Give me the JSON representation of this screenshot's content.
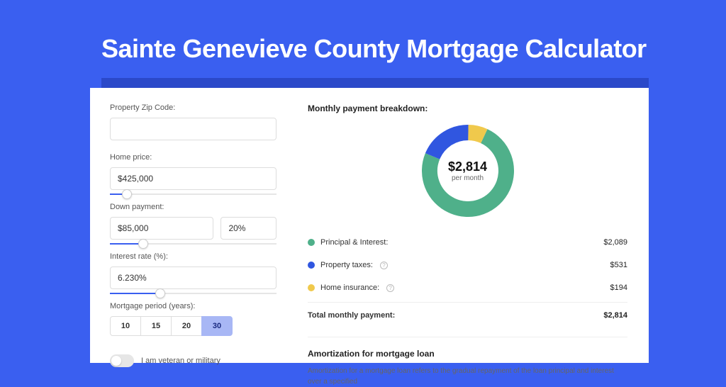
{
  "hero": {
    "title": "Sainte Genevieve County Mortgage Calculator"
  },
  "form": {
    "zip_label": "Property Zip Code:",
    "zip_value": "",
    "home_price_label": "Home price:",
    "home_price_value": "$425,000",
    "home_price_slider_pct": 10,
    "down_payment_label": "Down payment:",
    "down_payment_value": "$85,000",
    "down_payment_pct": "20%",
    "down_payment_slider_pct": 20,
    "rate_label": "Interest rate (%):",
    "rate_value": "6.230%",
    "rate_slider_pct": 30,
    "period_label": "Mortgage period (years):",
    "periods": [
      "10",
      "15",
      "20",
      "30"
    ],
    "period_selected": "30",
    "veteran_label": "I am veteran or military"
  },
  "breakdown": {
    "title": "Monthly payment breakdown:",
    "center_amount": "$2,814",
    "center_sub": "per month",
    "donut": {
      "slices": [
        {
          "color": "#4fb08a",
          "pct": 74.2
        },
        {
          "color": "#3056e0",
          "pct": 18.9
        },
        {
          "color": "#f0c94c",
          "pct": 6.9
        }
      ],
      "thickness": 22,
      "radius": 54
    },
    "items": [
      {
        "label": "Principal & Interest:",
        "value": "$2,089",
        "color": "#4fb08a",
        "info": false
      },
      {
        "label": "Property taxes:",
        "value": "$531",
        "color": "#3056e0",
        "info": true
      },
      {
        "label": "Home insurance:",
        "value": "$194",
        "color": "#f0c94c",
        "info": true
      }
    ],
    "total_label": "Total monthly payment:",
    "total_value": "$2,814"
  },
  "amort": {
    "title": "Amortization for mortgage loan",
    "text": "Amortization for a mortgage loan refers to the gradual repayment of the loan principal and interest over a specified"
  },
  "colors": {
    "page_bg": "#3a5ff0",
    "shadow": "#2b49c9"
  }
}
